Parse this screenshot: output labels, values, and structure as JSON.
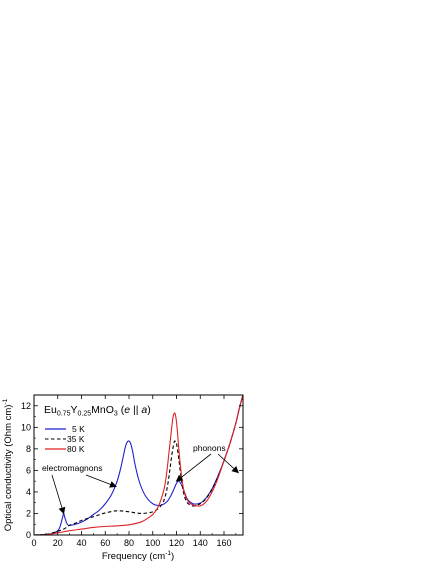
{
  "chart_data": {
    "type": "line",
    "title": {
      "parts": [
        "Eu",
        "0.75",
        "Y",
        "0.25",
        "MnO",
        "3",
        " (",
        "e",
        " || ",
        "a",
        ")"
      ]
    },
    "xlabel": {
      "main": "Frequency (cm",
      "sup": "-1",
      "end": ")"
    },
    "ylabel": {
      "main": "Optical conductivity (Ohm cm)",
      "sup": "-1"
    },
    "xlim": [
      0,
      176
    ],
    "ylim": [
      0,
      13
    ],
    "xticks": [
      0,
      20,
      40,
      60,
      80,
      100,
      120,
      140,
      160
    ],
    "yticks": [
      0,
      2,
      4,
      6,
      8,
      10,
      12
    ],
    "legend_position": "top-left",
    "series": [
      {
        "name": "5 K",
        "color": "#2222cc",
        "dash": "solid",
        "x": [
          0,
          10,
          16,
          20,
          22,
          24,
          25,
          26,
          28,
          30,
          35,
          40,
          45,
          50,
          55,
          60,
          65,
          70,
          73,
          75,
          77,
          79,
          81,
          83,
          85,
          88,
          92,
          96,
          100,
          104,
          108,
          112,
          115,
          118,
          120,
          122,
          124,
          126,
          128,
          130,
          134,
          138,
          142,
          146,
          150,
          155,
          160,
          165,
          170,
          173,
          176
        ],
        "y": [
          0,
          0.05,
          0.15,
          0.4,
          0.8,
          1.6,
          2.0,
          1.6,
          1.0,
          0.9,
          1.0,
          1.2,
          1.5,
          1.9,
          2.3,
          2.9,
          3.7,
          5.0,
          6.2,
          7.2,
          8.2,
          8.7,
          8.6,
          7.8,
          6.6,
          5.2,
          4.0,
          3.3,
          2.9,
          2.75,
          2.8,
          3.1,
          3.6,
          4.3,
          4.8,
          5.0,
          4.7,
          4.2,
          3.6,
          3.2,
          2.9,
          2.9,
          3.1,
          3.6,
          4.3,
          5.5,
          6.9,
          8.5,
          10.4,
          11.8,
          13.0
        ]
      },
      {
        "name": "35 K",
        "color": "#000000",
        "dash": "dashed",
        "x": [
          0,
          10,
          20,
          25,
          28,
          30,
          35,
          40,
          50,
          60,
          70,
          80,
          90,
          100,
          105,
          108,
          110,
          112,
          114,
          116,
          118,
          119,
          120,
          122,
          124,
          126,
          128,
          130,
          134,
          138,
          142,
          146,
          150,
          155,
          160,
          165,
          170,
          173,
          176
        ],
        "y": [
          0,
          0.05,
          0.35,
          0.55,
          0.75,
          0.9,
          1.1,
          1.35,
          1.7,
          2.05,
          2.25,
          2.15,
          2.0,
          2.15,
          2.5,
          2.9,
          3.4,
          4.3,
          5.7,
          7.4,
          8.6,
          8.7,
          8.5,
          7.0,
          5.2,
          3.9,
          3.2,
          2.9,
          2.7,
          2.8,
          3.05,
          3.55,
          4.25,
          5.45,
          6.9,
          8.5,
          10.4,
          11.8,
          13.0
        ]
      },
      {
        "name": "80 K",
        "color": "#dd2222",
        "dash": "solid",
        "x": [
          0,
          10,
          20,
          30,
          40,
          50,
          60,
          70,
          80,
          90,
          95,
          100,
          104,
          107,
          110,
          112,
          114,
          116,
          117,
          118,
          119,
          120,
          121,
          122,
          124,
          126,
          128,
          130,
          132,
          135,
          140,
          145,
          150,
          155,
          160,
          165,
          170,
          173,
          176
        ],
        "y": [
          0,
          0.03,
          0.2,
          0.4,
          0.55,
          0.7,
          0.8,
          0.85,
          0.95,
          1.2,
          1.5,
          1.9,
          2.5,
          3.3,
          4.5,
          6.0,
          8.0,
          10.0,
          10.9,
          11.3,
          11.2,
          10.5,
          9.3,
          7.9,
          5.7,
          4.2,
          3.5,
          3.1,
          2.9,
          2.75,
          2.7,
          3.1,
          4.0,
          5.3,
          6.9,
          8.5,
          10.4,
          11.8,
          13.0
        ]
      }
    ],
    "annotations": [
      {
        "text": "electromagnons",
        "arrows_to": [
          [
            25,
            2.0
          ],
          [
            69,
            4.5
          ]
        ]
      },
      {
        "text": "phonons",
        "arrows_to": [
          [
            120,
            5.0
          ],
          [
            172,
            5.8
          ]
        ]
      }
    ]
  }
}
